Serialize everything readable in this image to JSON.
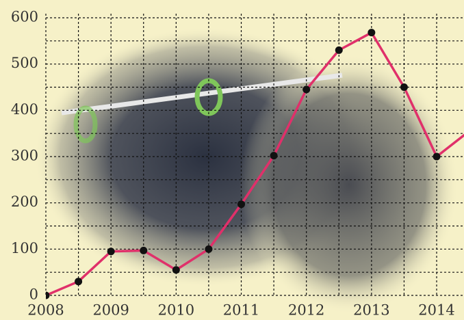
{
  "chart_data": {
    "type": "line",
    "x": [
      2008,
      2008.5,
      2009,
      2009.5,
      2010,
      2010.5,
      2011,
      2011.5,
      2012,
      2012.5,
      2013,
      2013.5,
      2014,
      2014.5
    ],
    "series": [
      {
        "color": "#e0306a",
        "values": [
          0,
          30,
          95,
          97,
          55,
          100,
          197,
          302,
          445,
          530,
          568,
          450,
          300,
          355
        ]
      }
    ],
    "xlim": [
      2008,
      2014.42
    ],
    "xticks": [
      2008,
      2009,
      2010,
      2011,
      2012,
      2013,
      2014
    ],
    "ylim": [
      0,
      600
    ],
    "yticks": [
      0,
      100,
      200,
      300,
      400,
      500,
      600
    ],
    "grid": true
  }
}
